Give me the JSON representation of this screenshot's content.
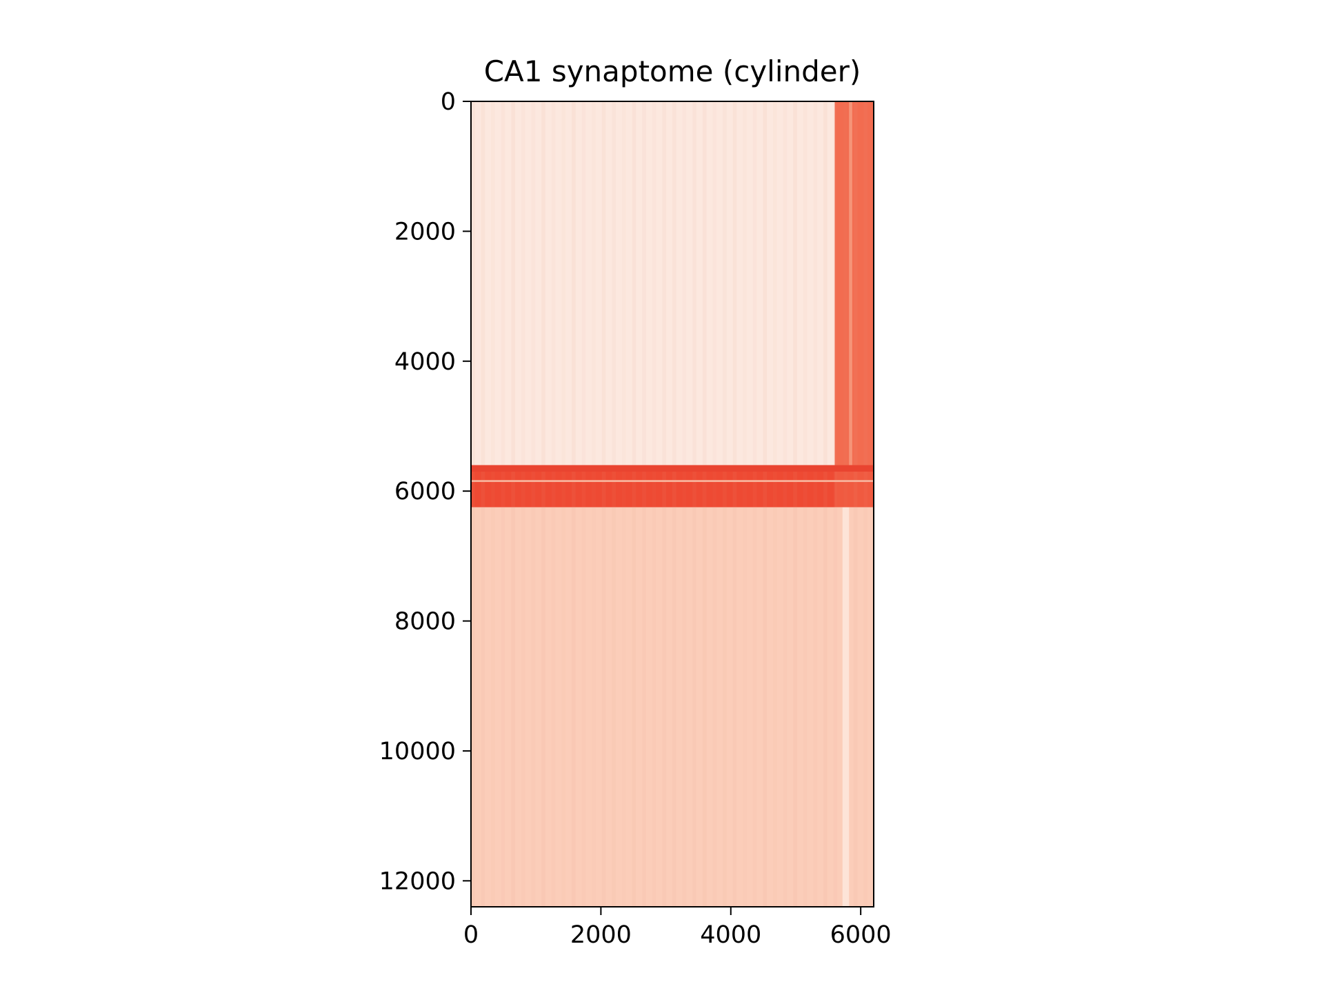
{
  "chart_data": {
    "type": "heatmap",
    "title": "CA1 synaptome (cylinder)",
    "xlabel": "",
    "ylabel": "",
    "xlim": [
      0,
      6200
    ],
    "ylim": [
      12400,
      0
    ],
    "y_axis_inverted": true,
    "grid": false,
    "legend": "none",
    "colormap": "Reds",
    "xticks": [
      0,
      2000,
      4000,
      6000
    ],
    "xtick_labels": [
      "0",
      "2000",
      "4000",
      "6000"
    ],
    "yticks": [
      0,
      2000,
      4000,
      6000,
      8000,
      10000,
      12000
    ],
    "ytick_labels": [
      "0",
      "2000",
      "4000",
      "6000",
      "8000",
      "10000",
      "12000"
    ],
    "blocks": [
      {
        "x": [
          0,
          5600
        ],
        "y": [
          0,
          5600
        ],
        "color": "#fce8df"
      },
      {
        "x": [
          5600,
          6200
        ],
        "y": [
          0,
          5600
        ],
        "color": "#f26c50"
      },
      {
        "x": [
          0,
          5600
        ],
        "y": [
          5600,
          6250
        ],
        "color": "#ee4a33"
      },
      {
        "x": [
          5600,
          6200
        ],
        "y": [
          5600,
          6250
        ],
        "color": "#f05a40"
      },
      {
        "x": [
          0,
          6200
        ],
        "y": [
          6250,
          12400
        ],
        "color": "#fbcdb9"
      }
    ],
    "bands": [
      {
        "axis": "x",
        "range": [
          5720,
          5820
        ],
        "y": [
          6250,
          12400
        ],
        "color": "#fde4d8"
      },
      {
        "axis": "x",
        "range": [
          5820,
          5870
        ],
        "y": [
          0,
          5600
        ],
        "color": "#f59478"
      },
      {
        "axis": "y",
        "range": [
          5830,
          5860
        ],
        "x": [
          0,
          6200
        ],
        "color": "#f7b19a"
      },
      {
        "axis": "y",
        "range": [
          5600,
          5700
        ],
        "x": [
          0,
          6200
        ],
        "color": "#e94430"
      }
    ],
    "cmap_scale": [
      "#fff5f0",
      "#fee0d2",
      "#fcbba1",
      "#fc9272",
      "#fb6a4a",
      "#ef3b2c",
      "#cb181d"
    ]
  }
}
